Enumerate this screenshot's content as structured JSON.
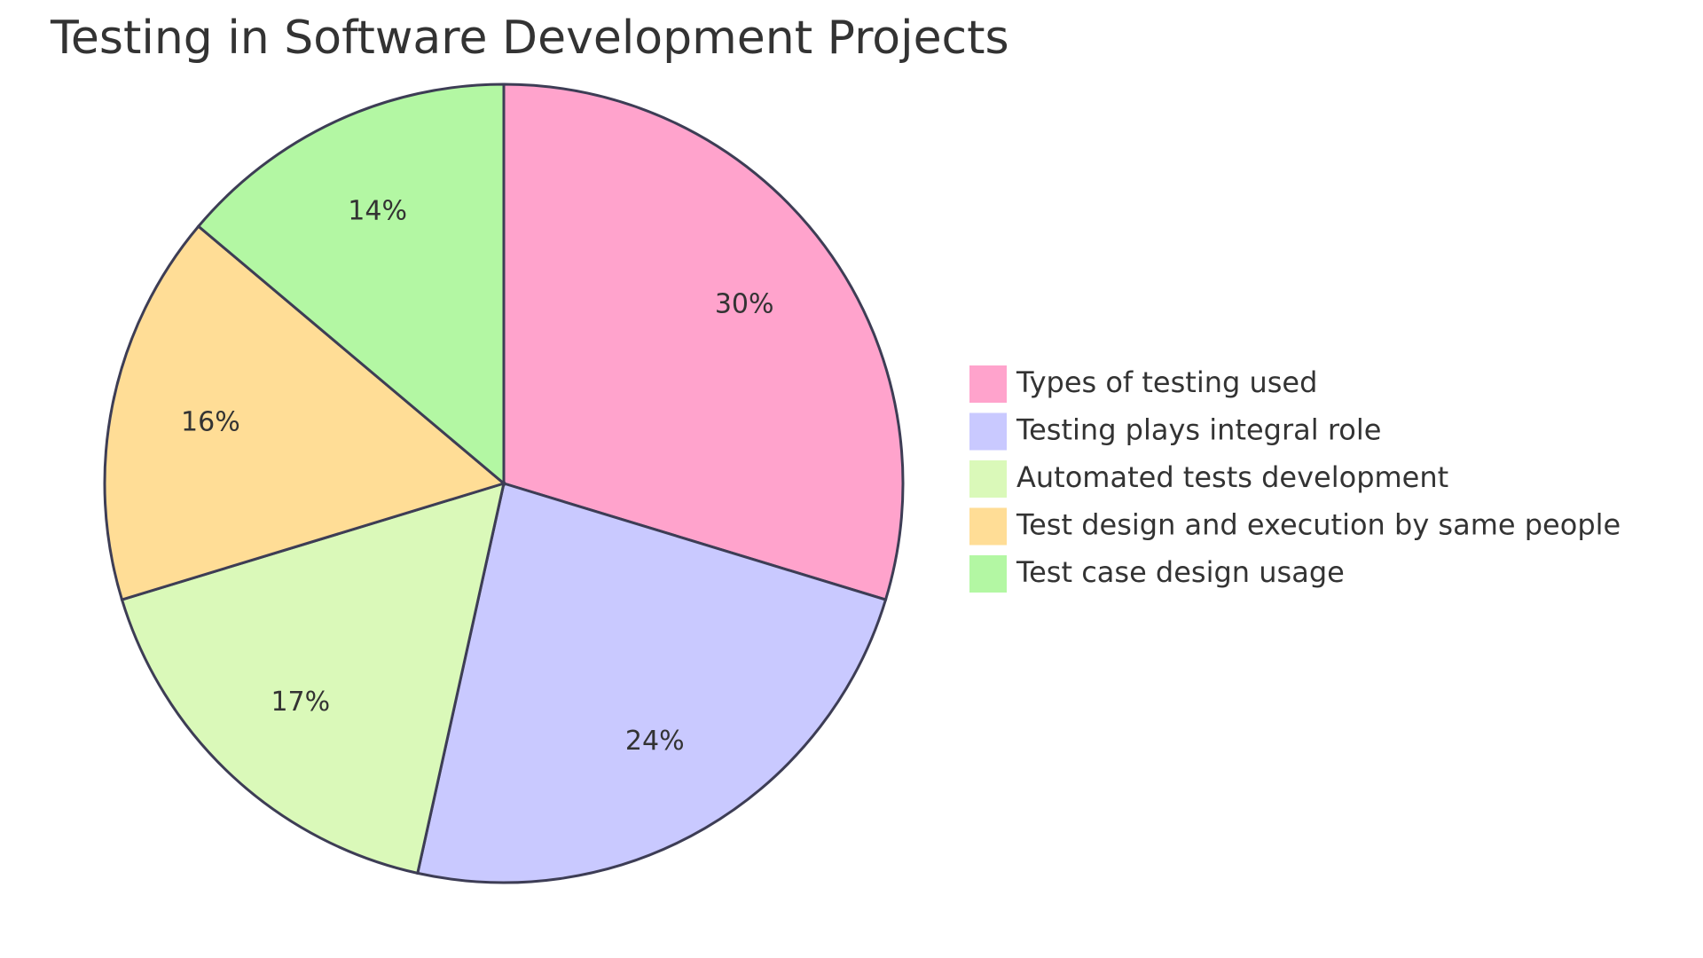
{
  "chart_data": {
    "type": "pie",
    "title": "Testing in Software Development Projects",
    "slices": [
      {
        "label": "Types of testing used",
        "value": 30,
        "display": "30%",
        "color": "#FFA3CC"
      },
      {
        "label": "Testing plays integral role",
        "value": 24,
        "display": "24%",
        "color": "#C9C9FF"
      },
      {
        "label": "Automated tests development",
        "value": 17,
        "display": "17%",
        "color": "#DAF9B9"
      },
      {
        "label": "Test design and execution by same people",
        "value": 16,
        "display": "16%",
        "color": "#FFDD96"
      },
      {
        "label": "Test case design usage",
        "value": 14,
        "display": "14%",
        "color": "#B3F7A3"
      }
    ],
    "legend_position": "right",
    "stroke_color": "#3d3d55"
  }
}
